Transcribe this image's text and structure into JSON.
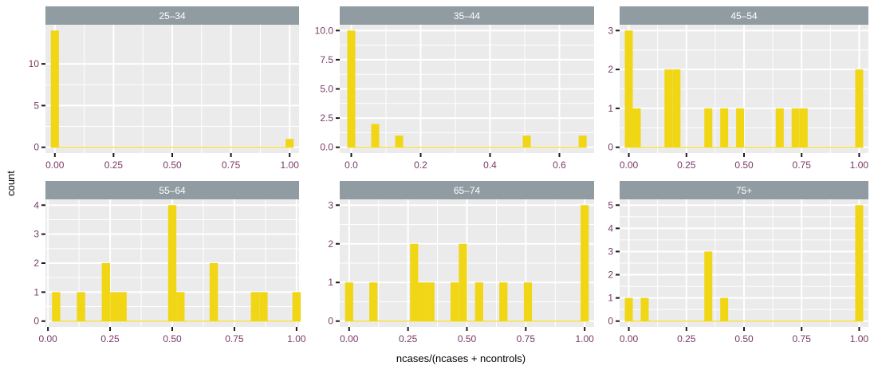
{
  "chart_data": {
    "type": "bar",
    "subtype": "faceted-histogram",
    "xlabel": "ncases/(ncases + ncontrols)",
    "ylabel": "count",
    "colors": {
      "bar_fill": "#f0d614",
      "panel_bg": "#ebebeb",
      "strip_bg": "#919ba2",
      "strip_text": "#ffffff",
      "grid": "#ffffff",
      "tick_label": "#7a3a66",
      "tick_mark": "#1a1a1a"
    },
    "panels": [
      {
        "label": "25–34",
        "xlim": [
          -0.04,
          1.04
        ],
        "ylim": [
          -0.7,
          14.7
        ],
        "xticks": [
          0,
          0.25,
          0.5,
          0.75,
          1
        ],
        "xtick_labels": [
          "0.00",
          "0.25",
          "0.50",
          "0.75",
          "1.00"
        ],
        "yticks": [
          0,
          5,
          10
        ],
        "ytick_labels": [
          "0",
          "5",
          "10"
        ],
        "binwidth": 0.0345,
        "bars": [
          {
            "x": 0.0,
            "count": 14
          },
          {
            "x": 1.0,
            "count": 1
          }
        ]
      },
      {
        "label": "35–44",
        "xlim": [
          -0.0333,
          0.7
        ],
        "ylim": [
          -0.5,
          10.5
        ],
        "xticks": [
          0,
          0.2,
          0.4,
          0.6
        ],
        "xtick_labels": [
          "0.0",
          "0.2",
          "0.4",
          "0.6"
        ],
        "yticks": [
          0,
          2.5,
          5,
          7.5,
          10
        ],
        "ytick_labels": [
          "0.0",
          "2.5",
          "5.0",
          "7.5",
          "10.0"
        ],
        "binwidth": 0.023,
        "bars": [
          {
            "x": 0.0,
            "count": 10
          },
          {
            "x": 0.069,
            "count": 2
          },
          {
            "x": 0.138,
            "count": 1
          },
          {
            "x": 0.506,
            "count": 1
          },
          {
            "x": 0.667,
            "count": 1
          }
        ]
      },
      {
        "label": "45–54",
        "xlim": [
          -0.04,
          1.04
        ],
        "ylim": [
          -0.15,
          3.15
        ],
        "xticks": [
          0,
          0.25,
          0.5,
          0.75,
          1
        ],
        "xtick_labels": [
          "0.00",
          "0.25",
          "0.50",
          "0.75",
          "1.00"
        ],
        "yticks": [
          0,
          1,
          2,
          3
        ],
        "ytick_labels": [
          "0",
          "1",
          "2",
          "3"
        ],
        "binwidth": 0.0345,
        "bars": [
          {
            "x": 0.0,
            "count": 3
          },
          {
            "x": 0.0345,
            "count": 1
          },
          {
            "x": 0.172,
            "count": 2
          },
          {
            "x": 0.207,
            "count": 2
          },
          {
            "x": 0.345,
            "count": 1
          },
          {
            "x": 0.414,
            "count": 1
          },
          {
            "x": 0.483,
            "count": 1
          },
          {
            "x": 0.655,
            "count": 1
          },
          {
            "x": 0.724,
            "count": 1
          },
          {
            "x": 0.759,
            "count": 1
          },
          {
            "x": 1.0,
            "count": 2
          }
        ]
      },
      {
        "label": "55–64",
        "xlim": [
          -0.01,
          1.01
        ],
        "ylim": [
          -0.2,
          4.2
        ],
        "xticks": [
          0,
          0.25,
          0.5,
          0.75,
          1
        ],
        "xtick_labels": [
          "0.00",
          "0.25",
          "0.50",
          "0.75",
          "1.00"
        ],
        "yticks": [
          0,
          1,
          2,
          3,
          4
        ],
        "ytick_labels": [
          "0",
          "1",
          "2",
          "3",
          "4"
        ],
        "binwidth": 0.0333,
        "bars": [
          {
            "x": 0.033,
            "count": 1
          },
          {
            "x": 0.133,
            "count": 1
          },
          {
            "x": 0.233,
            "count": 2
          },
          {
            "x": 0.267,
            "count": 1
          },
          {
            "x": 0.3,
            "count": 1
          },
          {
            "x": 0.5,
            "count": 4
          },
          {
            "x": 0.533,
            "count": 1
          },
          {
            "x": 0.667,
            "count": 2
          },
          {
            "x": 0.833,
            "count": 1
          },
          {
            "x": 0.867,
            "count": 1
          },
          {
            "x": 1.0,
            "count": 1
          }
        ]
      },
      {
        "label": "65–74",
        "xlim": [
          -0.04,
          1.04
        ],
        "ylim": [
          -0.15,
          3.15
        ],
        "xticks": [
          0,
          0.25,
          0.5,
          0.75,
          1
        ],
        "xtick_labels": [
          "0.00",
          "0.25",
          "0.50",
          "0.75",
          "1.00"
        ],
        "yticks": [
          0,
          1,
          2,
          3
        ],
        "ytick_labels": [
          "0",
          "1",
          "2",
          "3"
        ],
        "binwidth": 0.0345,
        "bars": [
          {
            "x": 0.0,
            "count": 1
          },
          {
            "x": 0.103,
            "count": 1
          },
          {
            "x": 0.276,
            "count": 2
          },
          {
            "x": 0.31,
            "count": 1
          },
          {
            "x": 0.345,
            "count": 1
          },
          {
            "x": 0.448,
            "count": 1
          },
          {
            "x": 0.483,
            "count": 2
          },
          {
            "x": 0.552,
            "count": 1
          },
          {
            "x": 0.655,
            "count": 1
          },
          {
            "x": 0.759,
            "count": 1
          },
          {
            "x": 1.0,
            "count": 3
          }
        ]
      },
      {
        "label": "75+",
        "xlim": [
          -0.04,
          1.04
        ],
        "ylim": [
          -0.25,
          5.25
        ],
        "xticks": [
          0,
          0.25,
          0.5,
          0.75,
          1
        ],
        "xtick_labels": [
          "0.00",
          "0.25",
          "0.50",
          "0.75",
          "1.00"
        ],
        "yticks": [
          0,
          1,
          2,
          3,
          4,
          5
        ],
        "ytick_labels": [
          "0",
          "1",
          "2",
          "3",
          "4",
          "5"
        ],
        "binwidth": 0.0345,
        "bars": [
          {
            "x": 0.0,
            "count": 1
          },
          {
            "x": 0.069,
            "count": 1
          },
          {
            "x": 0.345,
            "count": 3
          },
          {
            "x": 0.414,
            "count": 1
          },
          {
            "x": 1.0,
            "count": 5
          }
        ]
      }
    ]
  }
}
